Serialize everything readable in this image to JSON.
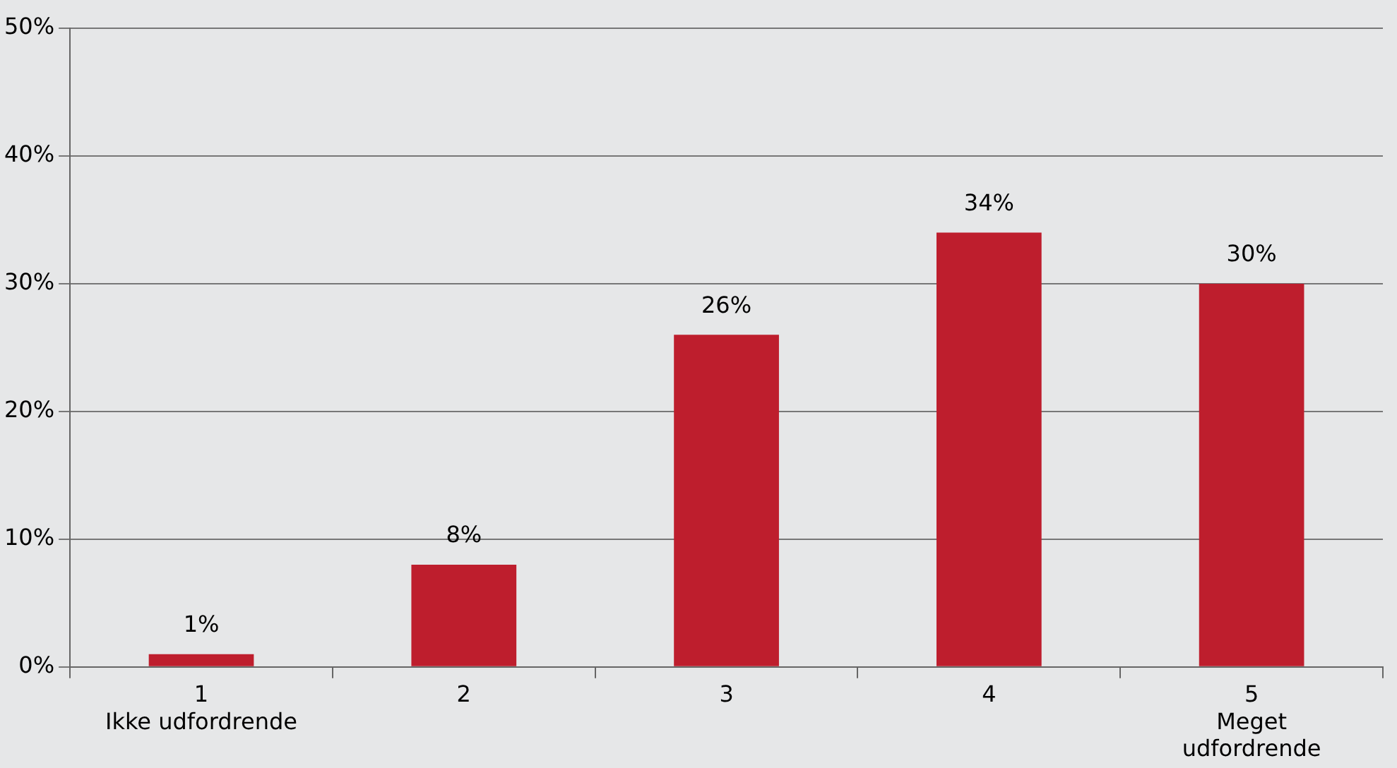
{
  "chart_data": {
    "type": "bar",
    "categories": [
      "1\nIkke udfordrende",
      "2",
      "3",
      "4",
      "5\nMeget\nudfordrende"
    ],
    "values": [
      1,
      8,
      26,
      34,
      30
    ],
    "color": "#be1e2d",
    "ylim": [
      0,
      50
    ],
    "yticks": [
      {
        "value": 0,
        "label": "0%"
      },
      {
        "value": 10,
        "label": "10%"
      },
      {
        "value": 20,
        "label": "20%"
      },
      {
        "value": 30,
        "label": "30%"
      },
      {
        "value": 40,
        "label": "40%"
      },
      {
        "value": 50,
        "label": "50%"
      }
    ],
    "value_labels": [
      "1%",
      "8%",
      "26%",
      "34%",
      "30%"
    ],
    "grid": "y",
    "legend": false
  }
}
